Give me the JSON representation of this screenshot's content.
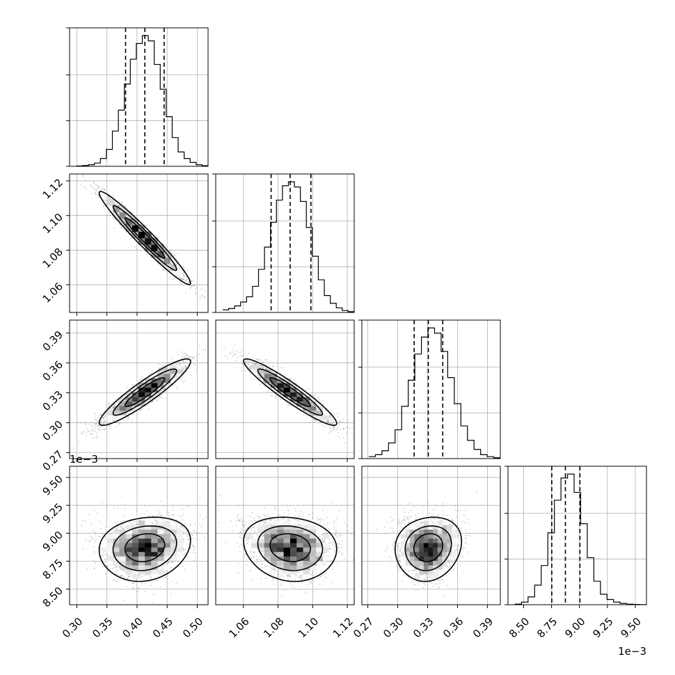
{
  "chart_data": {
    "type": "corner",
    "grid": true,
    "parameters": [
      {
        "index": 0,
        "range": [
          0.288,
          0.518
        ],
        "ticks": [
          0.3,
          0.35,
          0.4,
          0.45,
          0.5
        ],
        "tick_labels": [
          "0.30",
          "0.35",
          "0.40",
          "0.45",
          "0.50"
        ],
        "offset": "",
        "quantiles": [
          0.381,
          0.413,
          0.445
        ],
        "median": 0.413
      },
      {
        "index": 1,
        "range": [
          1.044,
          1.124
        ],
        "ticks": [
          1.06,
          1.08,
          1.1,
          1.12
        ],
        "tick_labels": [
          "1.06",
          "1.08",
          "1.10",
          "1.12"
        ],
        "offset": "",
        "quantiles": [
          1.076,
          1.087,
          1.099
        ],
        "median": 1.087
      },
      {
        "index": 2,
        "range": [
          0.264,
          0.403
        ],
        "ticks": [
          0.27,
          0.3,
          0.33,
          0.36,
          0.39
        ],
        "tick_labels": [
          "0.27",
          "0.30",
          "0.33",
          "0.36",
          "0.39"
        ],
        "offset": "",
        "quantiles": [
          0.3165,
          0.3307,
          0.3452
        ],
        "median": 0.3307
      },
      {
        "index": 3,
        "range": [
          8.36,
          9.6
        ],
        "ticks": [
          8.5,
          8.75,
          9.0,
          9.25,
          9.5
        ],
        "tick_labels": [
          "8.50",
          "8.75",
          "9.00",
          "9.25",
          "9.50"
        ],
        "offset": "1e−3",
        "quantiles": [
          8.752,
          8.874,
          9.004
        ],
        "median": 8.874
      }
    ],
    "histograms": [
      [
        0.003,
        0.006,
        0.012,
        0.025,
        0.06,
        0.13,
        0.27,
        0.43,
        0.63,
        0.82,
        0.94,
        1.0,
        0.96,
        0.78,
        0.59,
        0.38,
        0.22,
        0.11,
        0.06,
        0.03,
        0.012,
        0.005
      ],
      [
        0.02,
        0.03,
        0.05,
        0.08,
        0.12,
        0.2,
        0.33,
        0.5,
        0.69,
        0.86,
        0.97,
        1.0,
        0.96,
        0.85,
        0.65,
        0.43,
        0.25,
        0.13,
        0.07,
        0.035,
        0.015,
        0.006
      ],
      [
        0.015,
        0.03,
        0.06,
        0.12,
        0.22,
        0.4,
        0.6,
        0.8,
        0.93,
        1.0,
        0.96,
        0.82,
        0.62,
        0.42,
        0.25,
        0.14,
        0.07,
        0.03,
        0.015,
        0.006
      ],
      [
        0.005,
        0.02,
        0.06,
        0.15,
        0.3,
        0.55,
        0.8,
        0.97,
        1.0,
        0.86,
        0.62,
        0.36,
        0.18,
        0.08,
        0.04,
        0.02,
        0.01,
        0.004,
        0.002,
        0.001
      ]
    ],
    "posterior_2d": [
      {
        "x": 0,
        "y": 1,
        "mean": [
          0.413,
          1.087
        ],
        "std": [
          0.033,
          0.0117
        ],
        "rho": -0.97,
        "skew": 0,
        "contours": 3
      },
      {
        "x": 0,
        "y": 2,
        "mean": [
          0.413,
          0.3307
        ],
        "std": [
          0.033,
          0.0145
        ],
        "rho": 0.92,
        "skew": 0,
        "contours": 3
      },
      {
        "x": 1,
        "y": 2,
        "mean": [
          1.087,
          0.3307
        ],
        "std": [
          0.0117,
          0.0145
        ],
        "rho": -0.94,
        "skew": 0,
        "contours": 3
      },
      {
        "x": 0,
        "y": 3,
        "mean": [
          0.413,
          8.874
        ],
        "std": [
          0.033,
          0.125
        ],
        "rho": 0.15,
        "skew": 0.45,
        "contours": 3
      },
      {
        "x": 1,
        "y": 3,
        "mean": [
          1.087,
          8.874
        ],
        "std": [
          0.0117,
          0.125
        ],
        "rho": -0.12,
        "skew": 0.45,
        "contours": 3
      },
      {
        "x": 2,
        "y": 3,
        "mean": [
          0.3307,
          8.874
        ],
        "std": [
          0.0145,
          0.125
        ],
        "rho": 0.12,
        "skew": 0.45,
        "contours": 3
      }
    ],
    "density_colors": [
      "#ffffff",
      "#000000"
    ]
  }
}
